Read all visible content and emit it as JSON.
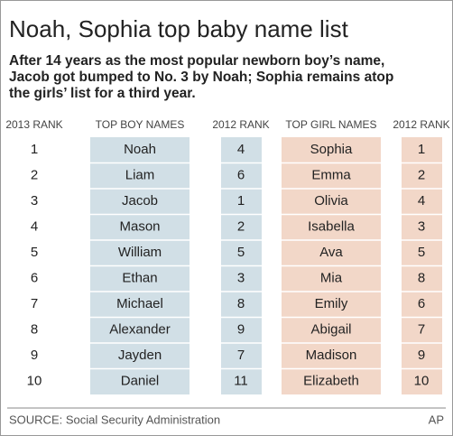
{
  "header": {
    "title": "Noah, Sophia top baby name list",
    "subtitle": [
      "After 14 years as the most popular newborn boy’s name,",
      "Jacob got bumped to No. 3 by Noah; Sophia remains atop",
      "the girls’ list for a third year."
    ]
  },
  "table": {
    "columns": [
      "2013 RANK",
      "TOP BOY NAMES",
      "2012 RANK",
      "TOP GIRL NAMES",
      "2012 RANK"
    ],
    "rows": [
      [
        1,
        "Noah",
        4,
        "Sophia",
        1
      ],
      [
        2,
        "Liam",
        6,
        "Emma",
        2
      ],
      [
        3,
        "Jacob",
        1,
        "Olivia",
        4
      ],
      [
        4,
        "Mason",
        2,
        "Isabella",
        3
      ],
      [
        5,
        "William",
        5,
        "Ava",
        5
      ],
      [
        6,
        "Ethan",
        3,
        "Mia",
        8
      ],
      [
        7,
        "Michael",
        8,
        "Emily",
        6
      ],
      [
        8,
        "Alexander",
        9,
        "Abigail",
        7
      ],
      [
        9,
        "Jayden",
        7,
        "Madison",
        9
      ],
      [
        10,
        "Daniel",
        11,
        "Elizabeth",
        10
      ]
    ]
  },
  "footer": {
    "source": "SOURCE: Social Security Administration",
    "credit": "AP"
  }
}
